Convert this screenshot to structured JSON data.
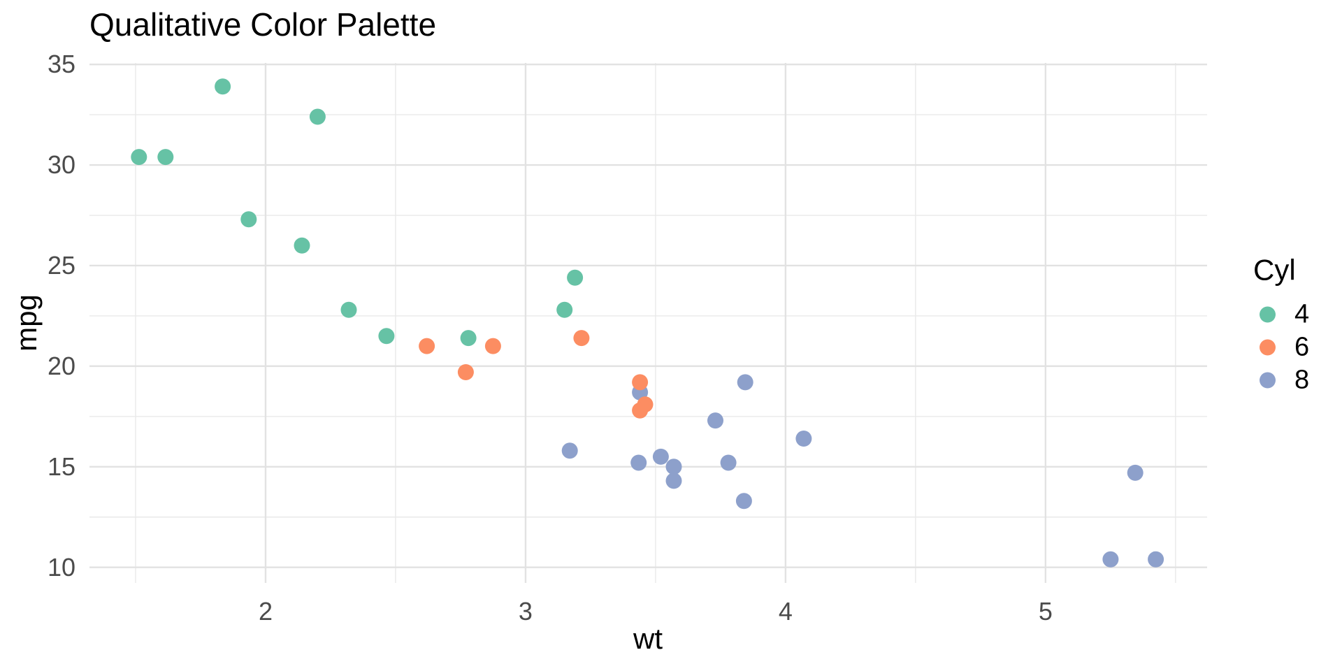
{
  "page": {
    "background": "#FFFFFF"
  },
  "chart_data": {
    "type": "scatter",
    "title": "Qualitative Color Palette",
    "xlabel": "wt",
    "ylabel": "mpg",
    "legend_title": "Cyl",
    "legend_position": "right",
    "xlim": [
      1.3226,
      5.6214
    ],
    "ylim": [
      9.225,
      35.075
    ],
    "x_ticks": [
      2,
      3,
      4,
      5
    ],
    "y_ticks": [
      10,
      15,
      20,
      25,
      30,
      35
    ],
    "x_minor_ticks": [
      1.5,
      2.5,
      3.5,
      4.5,
      5.5
    ],
    "y_minor_ticks": [
      12.5,
      17.5,
      22.5,
      27.5,
      32.5
    ],
    "grid": {
      "major_color": "#E2E2E2",
      "minor_color": "#E9E9E9",
      "major_width": 2.4,
      "minor_width": 1.4
    },
    "point_radius": 11.5,
    "axis_text_color": "#4B4B4B",
    "title_color": "#000000",
    "series": [
      {
        "name": "4",
        "color": "#66C2A5",
        "points": [
          [
            2.32,
            22.8,
            3
          ],
          [
            3.19,
            24.4,
            8
          ],
          [
            3.15,
            22.8,
            9
          ],
          [
            2.2,
            32.4,
            18
          ],
          [
            1.615,
            30.4,
            19
          ],
          [
            1.835,
            33.9,
            20
          ],
          [
            2.465,
            21.5,
            21
          ],
          [
            1.935,
            27.3,
            26
          ],
          [
            2.14,
            26.0,
            27
          ],
          [
            1.513,
            30.4,
            28
          ],
          [
            2.78,
            21.4,
            32
          ]
        ]
      },
      {
        "name": "6",
        "color": "#FC8D62",
        "points": [
          [
            2.62,
            21.0,
            1
          ],
          [
            2.875,
            21.0,
            2
          ],
          [
            3.215,
            21.4,
            4
          ],
          [
            3.46,
            18.1,
            6
          ],
          [
            3.44,
            19.2,
            10
          ],
          [
            3.44,
            17.8,
            11
          ],
          [
            2.77,
            19.7,
            30
          ]
        ]
      },
      {
        "name": "8",
        "color": "#8DA0CB",
        "points": [
          [
            3.44,
            18.7,
            5
          ],
          [
            3.57,
            14.3,
            7
          ],
          [
            4.07,
            16.4,
            12
          ],
          [
            3.73,
            17.3,
            13
          ],
          [
            3.78,
            15.2,
            14
          ],
          [
            5.25,
            10.4,
            15
          ],
          [
            5.424,
            10.4,
            16
          ],
          [
            5.345,
            14.7,
            17
          ],
          [
            3.52,
            15.5,
            22
          ],
          [
            3.435,
            15.2,
            23
          ],
          [
            3.84,
            13.3,
            24
          ],
          [
            3.845,
            19.2,
            25
          ],
          [
            3.17,
            15.8,
            29
          ],
          [
            3.57,
            15.0,
            31
          ]
        ]
      }
    ]
  }
}
